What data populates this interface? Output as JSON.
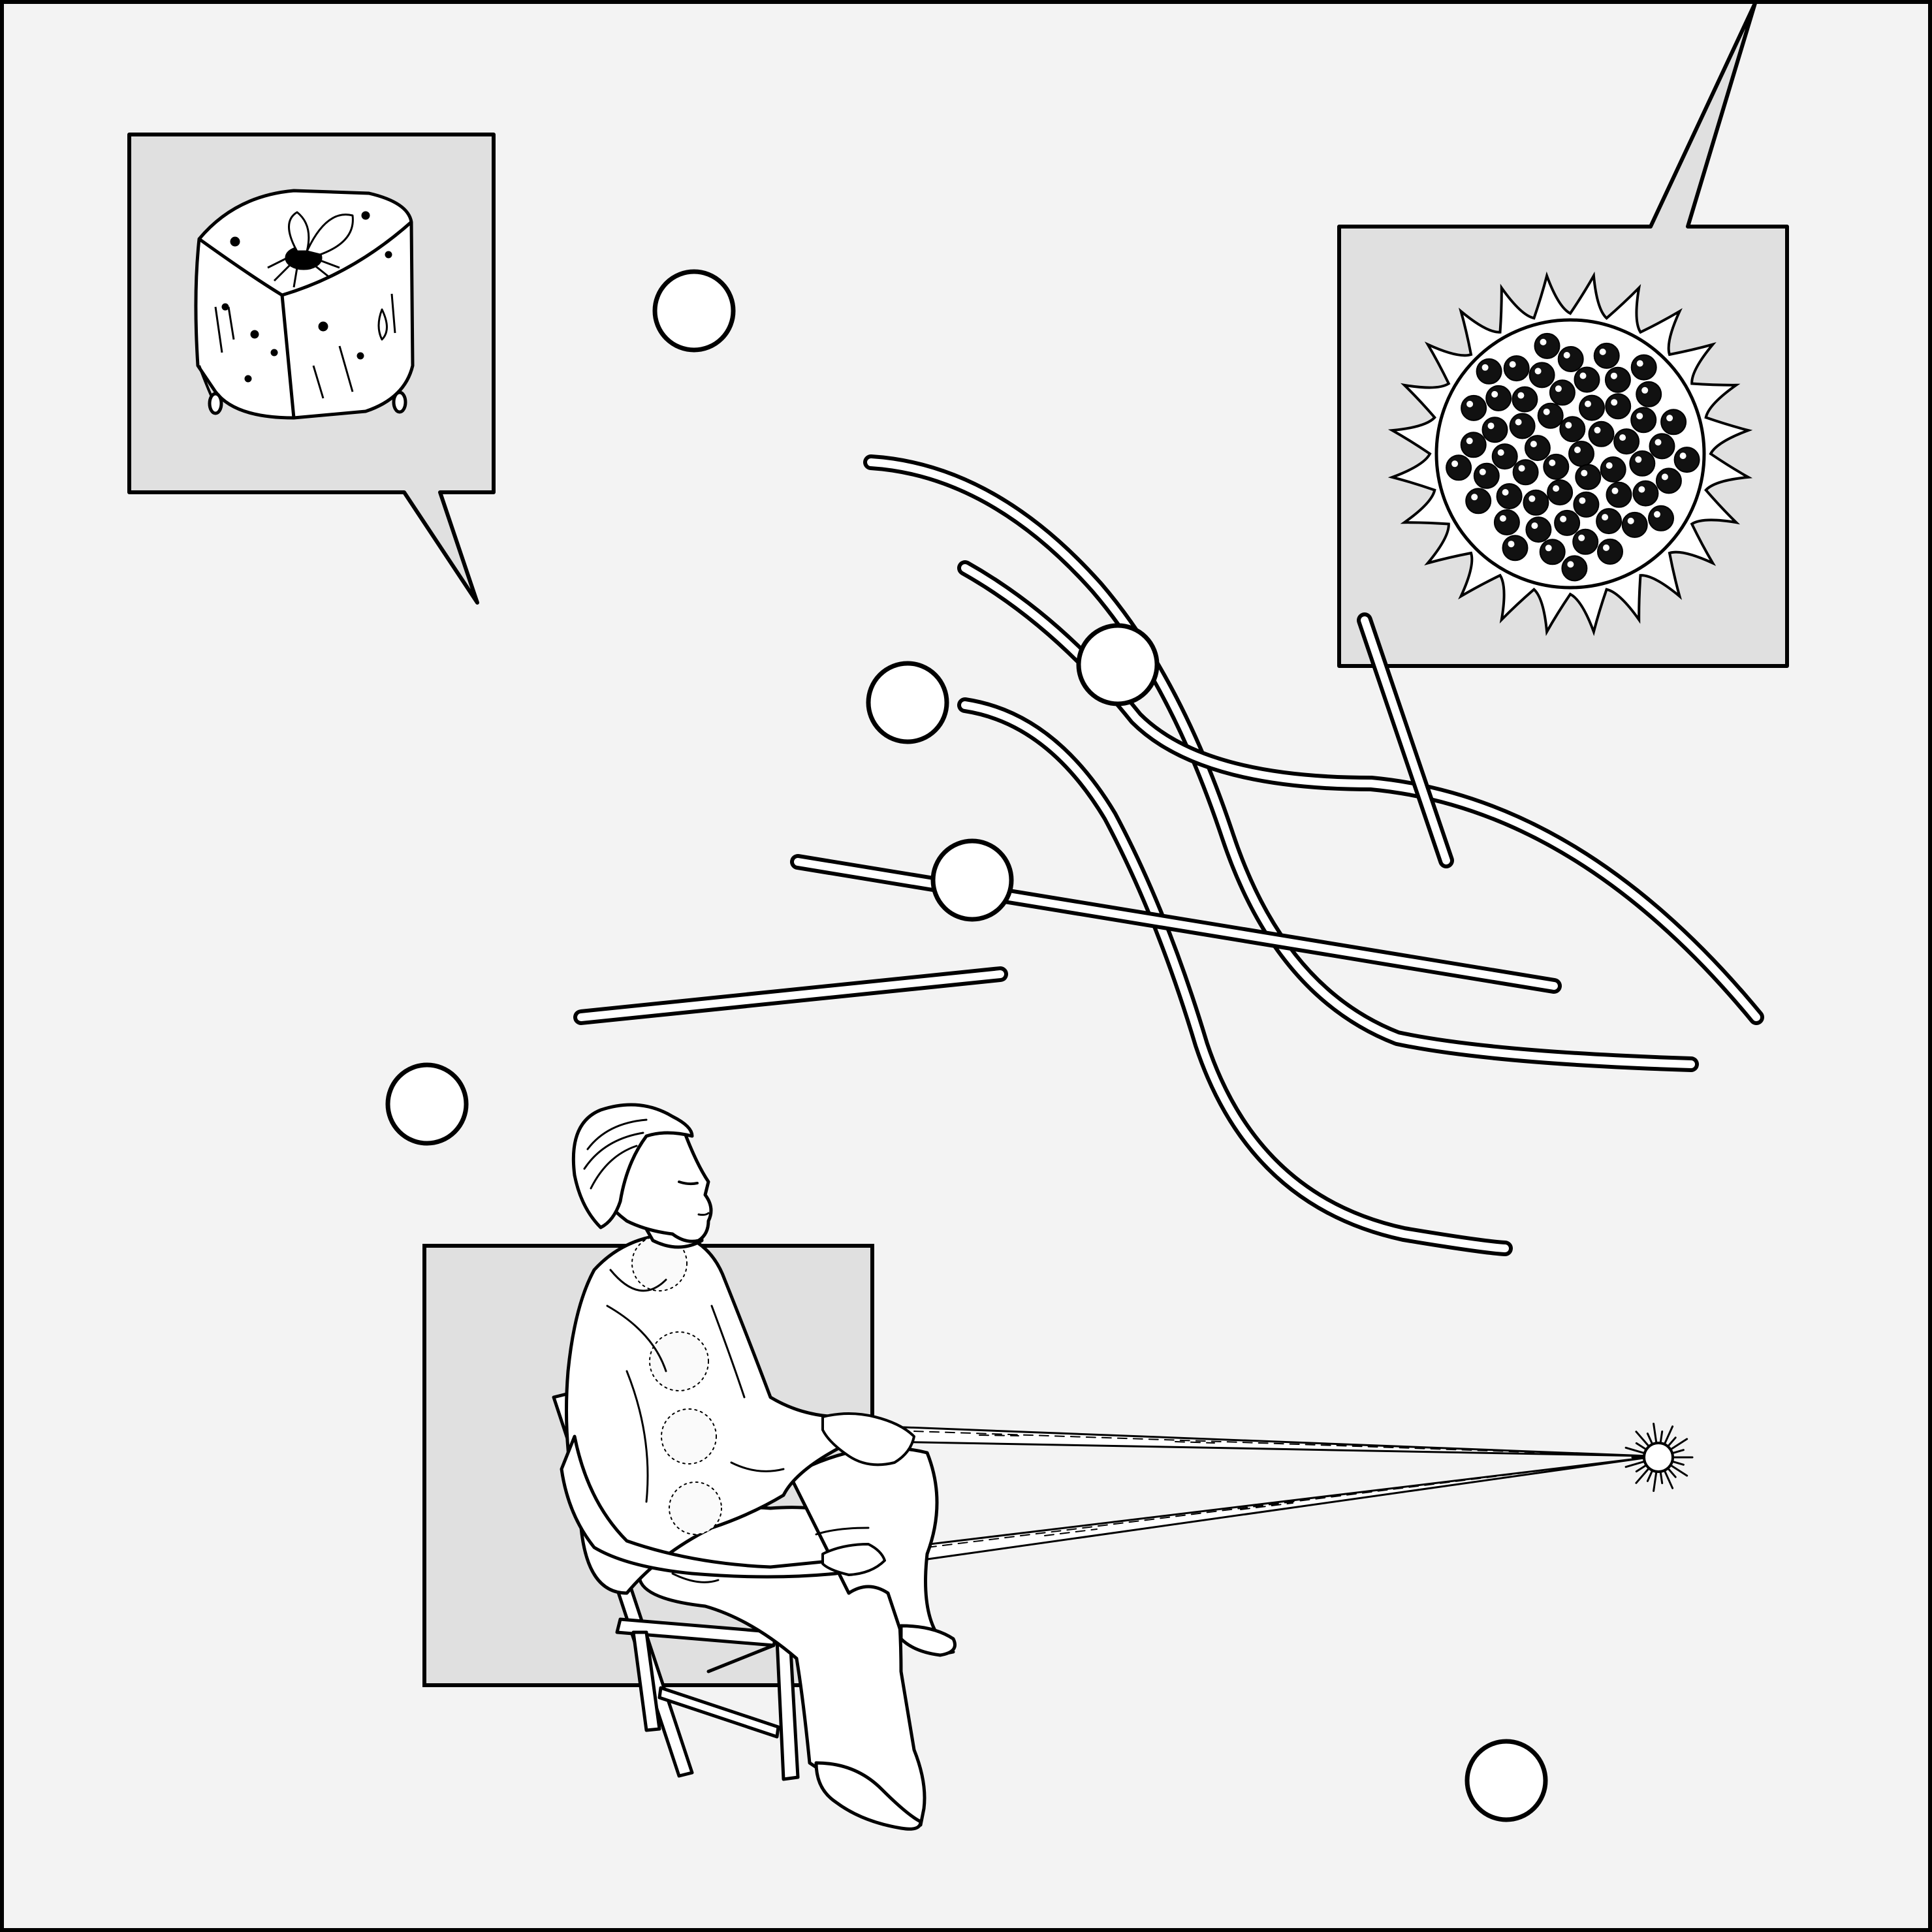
{
  "colors": {
    "background": "#f3f3f3",
    "panel_fill": "#e0e0e0",
    "stroke": "#000000",
    "marker_fill": "#ffffff"
  },
  "icons": {
    "top_left_panel": "ice-cube-with-fly-icon",
    "top_right_panel": "sunflower-seed-head-icon",
    "lower_figure": "seated-meditating-person-icon",
    "light_point": "radiant-star-icon"
  }
}
